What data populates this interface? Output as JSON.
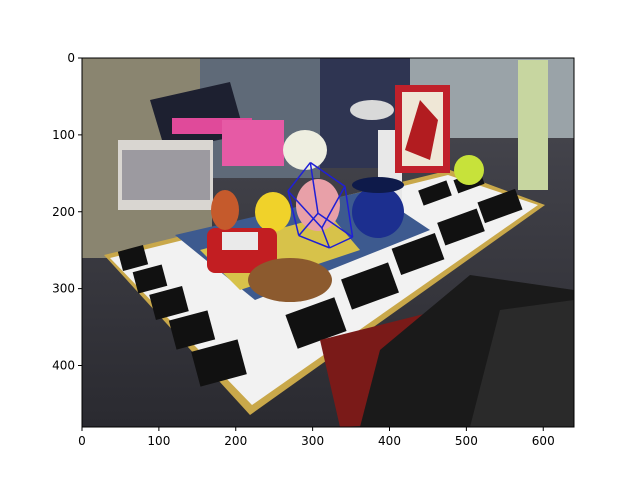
{
  "chart_data": {
    "type": "image",
    "title": "",
    "xlabel": "",
    "ylabel": "",
    "xlim": [
      0,
      640
    ],
    "ylim": [
      480,
      0
    ],
    "xticks": [
      0,
      100,
      200,
      300,
      400,
      500,
      600
    ],
    "yticks": [
      0,
      100,
      200,
      300,
      400
    ],
    "grid": false,
    "image": {
      "description_label": "photo of a table with fiducial markers, a toy car, a yellow duck, a pink pig figure, a blue mug and a laptop"
    },
    "overlay": {
      "type": "wireframe-box",
      "color": "#1f1fd6",
      "vertices": [
        [
          268,
          173
        ],
        [
          297,
          136
        ],
        [
          342,
          167
        ],
        [
          312,
          221
        ],
        [
          282,
          231
        ],
        [
          307,
          202
        ],
        [
          352,
          233
        ],
        [
          322,
          247
        ]
      ],
      "edges": [
        [
          0,
          1
        ],
        [
          1,
          2
        ],
        [
          2,
          3
        ],
        [
          3,
          0
        ],
        [
          4,
          5
        ],
        [
          5,
          6
        ],
        [
          6,
          7
        ],
        [
          7,
          4
        ],
        [
          0,
          4
        ],
        [
          1,
          5
        ],
        [
          2,
          6
        ],
        [
          3,
          7
        ]
      ]
    }
  }
}
